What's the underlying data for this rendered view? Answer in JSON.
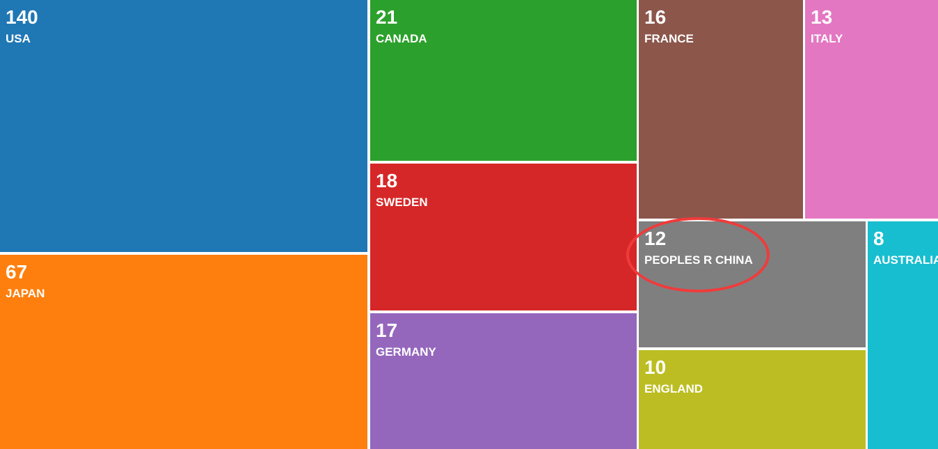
{
  "chart_data": {
    "type": "treemap",
    "categories": [
      "USA",
      "JAPAN",
      "CANADA",
      "SWEDEN",
      "GERMANY",
      "FRANCE",
      "ITALY",
      "PEOPLES R CHINA",
      "ENGLAND",
      "AUSTRALIA"
    ],
    "values": [
      140,
      67,
      21,
      18,
      17,
      16,
      13,
      12,
      10,
      8
    ],
    "colors": [
      "#1f77b4",
      "#ff7f0e",
      "#2ca02c",
      "#d62728",
      "#9467bd",
      "#8c564b",
      "#e377c2",
      "#7f7f7f",
      "#bcbd22",
      "#17becf"
    ],
    "highlighted": "PEOPLES R CHINA",
    "highlight_color": "#f03b3b"
  }
}
